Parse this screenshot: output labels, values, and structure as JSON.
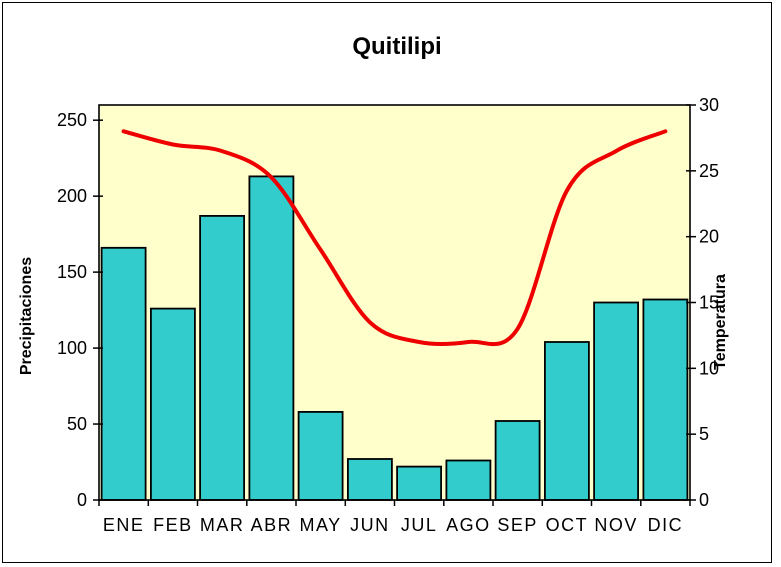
{
  "chart_data": {
    "type": "bar",
    "subtype": "column-and-line-combo",
    "title": "Quitilipi",
    "categories": [
      "ENE",
      "FEB",
      "MAR",
      "ABR",
      "MAY",
      "JUN",
      "JUL",
      "AGO",
      "SEP",
      "OCT",
      "NOV",
      "DIC"
    ],
    "series": [
      {
        "name": "Precipitaciones",
        "type": "bar",
        "axis": "left",
        "color": "#33CCCC",
        "border_color": "#000000",
        "values": [
          166,
          126,
          187,
          213,
          58,
          27,
          22,
          26,
          52,
          104,
          130,
          132
        ]
      },
      {
        "name": "Temperatura",
        "type": "line",
        "axis": "right",
        "color": "#EE0000",
        "smooth": true,
        "values": [
          28,
          27,
          26.5,
          24.5,
          19,
          13.5,
          12,
          12,
          13,
          23.5,
          26.5,
          28
        ]
      }
    ],
    "left_axis": {
      "title": "Precipitaciones",
      "min": 0,
      "max": 260,
      "ticks": [
        0,
        50,
        100,
        150,
        200,
        250
      ]
    },
    "right_axis": {
      "title": "Temperatura",
      "min": 0,
      "max": 30,
      "ticks": [
        0,
        5,
        10,
        15,
        20,
        25,
        30
      ]
    },
    "x_axis": {
      "tick_style": "at-category-boundaries"
    },
    "plot_background": "#FFFFCC",
    "grid": false,
    "legend": "none"
  },
  "colors": {
    "canvas_background": "#FFFFFF",
    "outer_border": "#000000",
    "axis_color": "#000000"
  }
}
